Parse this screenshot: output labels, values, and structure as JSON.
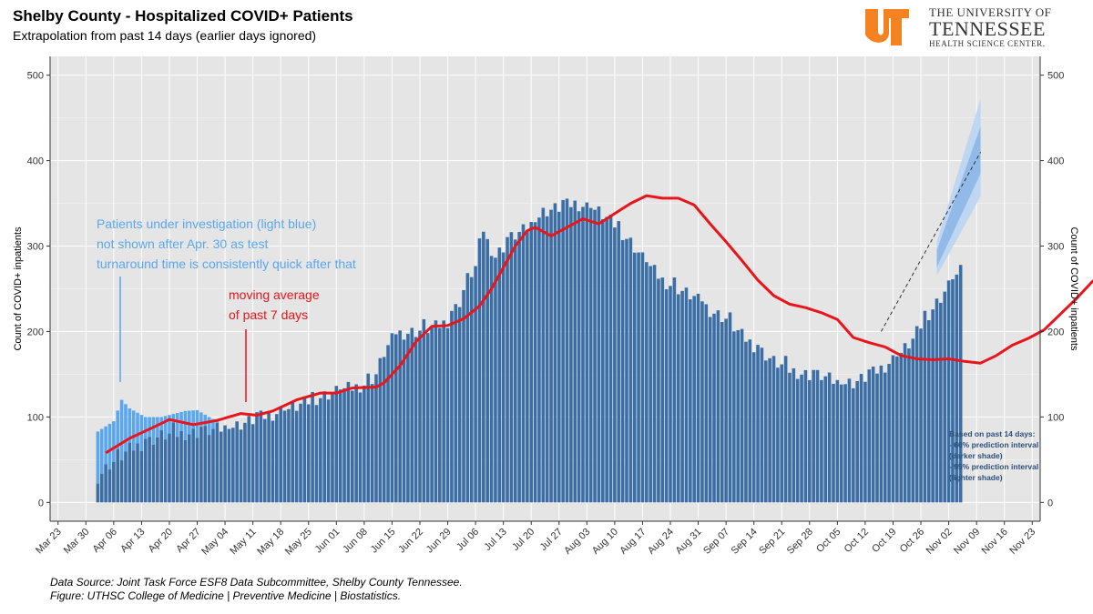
{
  "header": {
    "title": "Shelby County - Hospitalized COVID+ Patients",
    "subtitle": "Extrapolation from past 14 days (earlier days ignored)"
  },
  "logo": {
    "line1": "THE UNIVERSITY OF",
    "line2": "TENNESSEE",
    "line3": "HEALTH SCIENCE CENTER.",
    "color": "#F58220"
  },
  "footer": {
    "source": "Data Source: Joint Task Force ESF8 Data Subcommittee, Shelby County Tennessee.",
    "figure": "Figure: UTHSC College of Medicine | Preventive Medicine | Biostatistics."
  },
  "annotations": {
    "pui": [
      "Patients under investigation (light blue)",
      "not shown after Apr. 30 as test",
      "turnaround time is consistently quick after that"
    ],
    "ma": [
      "moving average",
      "of past 7 days"
    ],
    "legend": [
      "Based on past 14 days:",
      "- 66% prediction interval",
      "(darker shade)",
      "- 95% prediction interval",
      "(lighter shade)"
    ]
  },
  "colors": {
    "panel": "#E5E5E5",
    "grid": "#FFFFFF",
    "confirmed": "#3A6EA5",
    "pui": "#5AA7F0",
    "moving_average": "#E8151B",
    "band95": "#B9D4F2",
    "band66": "#8CB7E8",
    "pui_text": "#5AA7F0",
    "ma_text": "#E8151B",
    "legend_text": "#2C4F7A"
  },
  "chart_data": {
    "type": "bar",
    "ylabel": "Count of COVID+ inpatients",
    "ylim": [
      -22,
      522
    ],
    "yticks": [
      0,
      100,
      200,
      300,
      400,
      500
    ],
    "x_start": "2020-03-21",
    "x_end": "2020-11-25",
    "xticks": [
      "Mar 23",
      "Mar 30",
      "Apr 06",
      "Apr 13",
      "Apr 20",
      "Apr 27",
      "May 04",
      "May 11",
      "May 18",
      "May 25",
      "Jun 01",
      "Jun 08",
      "Jun 15",
      "Jun 22",
      "Jun 29",
      "Jul 06",
      "Jul 13",
      "Jul 20",
      "Jul 27",
      "Aug 03",
      "Aug 10",
      "Aug 17",
      "Aug 24",
      "Aug 31",
      "Sep 07",
      "Sep 14",
      "Sep 21",
      "Sep 28",
      "Oct 05",
      "Oct 12",
      "Oct 19",
      "Oct 26",
      "Nov 02",
      "Nov 09",
      "Nov 16",
      "Nov 23"
    ],
    "grid": true,
    "bars_start": "2020-04-02",
    "confirmed_key": [
      [
        0,
        30
      ],
      [
        3,
        45
      ],
      [
        5,
        50
      ],
      [
        8,
        62
      ],
      [
        12,
        70
      ],
      [
        16,
        78
      ],
      [
        20,
        80
      ],
      [
        25,
        82
      ],
      [
        30,
        85
      ],
      [
        35,
        90
      ],
      [
        40,
        98
      ],
      [
        45,
        105
      ],
      [
        50,
        112
      ],
      [
        55,
        122
      ],
      [
        60,
        130
      ],
      [
        65,
        135
      ],
      [
        68,
        140
      ],
      [
        70,
        150
      ],
      [
        72,
        175
      ],
      [
        74,
        190
      ],
      [
        76,
        198
      ],
      [
        80,
        200
      ],
      [
        85,
        205
      ],
      [
        88,
        212
      ],
      [
        91,
        235
      ],
      [
        93,
        262
      ],
      [
        95,
        275
      ],
      [
        96,
        295
      ],
      [
        97,
        320
      ],
      [
        98,
        305
      ],
      [
        100,
        288
      ],
      [
        104,
        310
      ],
      [
        108,
        320
      ],
      [
        112,
        340
      ],
      [
        116,
        345
      ],
      [
        120,
        350
      ],
      [
        124,
        345
      ],
      [
        126,
        340
      ],
      [
        130,
        325
      ],
      [
        134,
        305
      ],
      [
        138,
        280
      ],
      [
        142,
        260
      ],
      [
        146,
        250
      ],
      [
        150,
        240
      ],
      [
        154,
        225
      ],
      [
        158,
        215
      ],
      [
        162,
        195
      ],
      [
        166,
        180
      ],
      [
        170,
        165
      ],
      [
        174,
        155
      ],
      [
        178,
        150
      ],
      [
        182,
        148
      ],
      [
        186,
        140
      ],
      [
        190,
        140
      ],
      [
        194,
        148
      ],
      [
        198,
        160
      ],
      [
        202,
        175
      ],
      [
        205,
        190
      ],
      [
        208,
        215
      ],
      [
        212,
        240
      ],
      [
        215,
        260
      ],
      [
        217,
        270
      ]
    ],
    "total_key": [
      [
        0,
        83
      ],
      [
        4,
        95
      ],
      [
        6,
        120
      ],
      [
        8,
        110
      ],
      [
        12,
        100
      ],
      [
        16,
        100
      ],
      [
        22,
        107
      ],
      [
        25,
        108
      ],
      [
        28,
        100
      ],
      [
        30,
        95
      ]
    ],
    "moving_average_key": [
      [
        2,
        58
      ],
      [
        8,
        75
      ],
      [
        14,
        88
      ],
      [
        18,
        97
      ],
      [
        24,
        91
      ],
      [
        30,
        96
      ],
      [
        36,
        104
      ],
      [
        40,
        102
      ],
      [
        44,
        107
      ],
      [
        50,
        120
      ],
      [
        56,
        128
      ],
      [
        60,
        128
      ],
      [
        64,
        134
      ],
      [
        70,
        135
      ],
      [
        72,
        140
      ],
      [
        76,
        160
      ],
      [
        80,
        188
      ],
      [
        84,
        206
      ],
      [
        88,
        207
      ],
      [
        92,
        215
      ],
      [
        96,
        230
      ],
      [
        99,
        250
      ],
      [
        102,
        275
      ],
      [
        105,
        300
      ],
      [
        108,
        318
      ],
      [
        110,
        322
      ],
      [
        114,
        312
      ],
      [
        118,
        322
      ],
      [
        122,
        332
      ],
      [
        126,
        326
      ],
      [
        130,
        338
      ],
      [
        134,
        350
      ],
      [
        138,
        359
      ],
      [
        142,
        356
      ],
      [
        146,
        356
      ],
      [
        150,
        348
      ],
      [
        154,
        326
      ],
      [
        158,
        305
      ],
      [
        162,
        283
      ],
      [
        166,
        260
      ],
      [
        170,
        242
      ],
      [
        174,
        232
      ],
      [
        178,
        228
      ],
      [
        182,
        222
      ],
      [
        186,
        214
      ],
      [
        190,
        193
      ],
      [
        194,
        187
      ],
      [
        198,
        182
      ],
      [
        202,
        172
      ],
      [
        206,
        168
      ],
      [
        210,
        167
      ],
      [
        214,
        168
      ],
      [
        218,
        165
      ],
      [
        222,
        163
      ],
      [
        226,
        172
      ],
      [
        230,
        184
      ],
      [
        234,
        192
      ],
      [
        238,
        202
      ],
      [
        242,
        220
      ],
      [
        246,
        238
      ],
      [
        250,
        258
      ],
      [
        253,
        268
      ]
    ],
    "forecast": {
      "start": "2020-10-30",
      "end": "2020-11-10",
      "mean": [
        285,
        410
      ],
      "pi66": [
        [
          275,
          295
        ],
        [
          385,
          440
        ]
      ],
      "pi95": [
        [
          265,
          305
        ],
        [
          358,
          472
        ]
      ]
    }
  }
}
